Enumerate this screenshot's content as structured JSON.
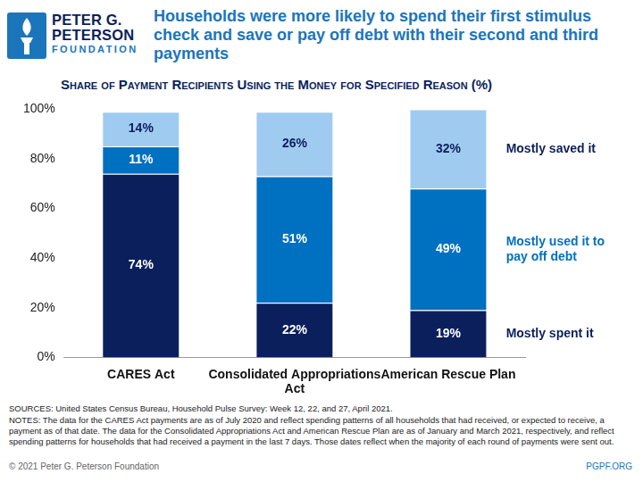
{
  "logo": [
    "PETER G.",
    "PETERSON",
    "FOUNDATION"
  ],
  "chart_data": {
    "type": "bar",
    "title": "Households were more likely to spend their first stimulus check and save or pay off debt with their second and third payments",
    "subtitle": "Share of Payment Recipients Using the Money for Specified Reason (%)",
    "categories": [
      "CARES Act",
      "Consolidated Appropriations Act",
      "American Rescue Plan"
    ],
    "series": [
      {
        "name": "Mostly spent it",
        "color": "#0b1f5c",
        "values": [
          74,
          22,
          19
        ],
        "value_labels": [
          "74%",
          "22%",
          "19%"
        ]
      },
      {
        "name": "Mostly used it to pay off debt",
        "color": "#0070c0",
        "values": [
          11,
          51,
          49
        ],
        "value_labels": [
          "11%",
          "51%",
          "49%"
        ]
      },
      {
        "name": "Mostly saved it",
        "color": "#9fcbf0",
        "values": [
          14,
          26,
          32
        ],
        "value_labels": [
          "14%",
          "26%",
          "32%"
        ]
      }
    ],
    "stacked": true,
    "data_labels": true,
    "grid": false,
    "ylim": [
      0,
      100
    ],
    "yticks": [
      {
        "value": 0,
        "label": "0%"
      },
      {
        "value": 20,
        "label": "20%"
      },
      {
        "value": 40,
        "label": "40%"
      },
      {
        "value": 60,
        "label": "60%"
      },
      {
        "value": 80,
        "label": "80%"
      },
      {
        "value": 100,
        "label": "100%"
      }
    ]
  },
  "footer": {
    "sources": "SOURCES: United States Census Bureau, Household Pulse Survey: Week 12, 22, and 27, April 2021.",
    "notes": "NOTES: The data for the CARES Act payments are as of July 2020 and reflect spending patterns of all households that had received, or expected to receive, a payment as of that date. The data for the Consolidated Appropriations Act and American Rescue Plan are as of January and March 2021, respectively, and reflect spending patterns for households that had received a payment in the last 7 days. Those dates reflect when the majority of each round of payments were sent out.",
    "copyright": "© 2021 Peter G. Peterson Foundation",
    "site": "PGPF.ORG"
  }
}
